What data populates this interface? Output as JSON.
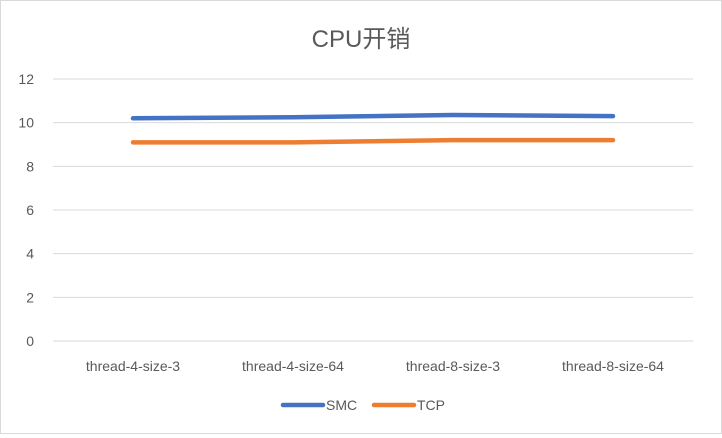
{
  "chart_data": {
    "type": "line",
    "title": "CPU开销",
    "categories": [
      "thread-4-size-3",
      "thread-4-size-64",
      "thread-8-size-3",
      "thread-8-size-64"
    ],
    "series": [
      {
        "name": "SMC",
        "values": [
          10.2,
          10.25,
          10.35,
          10.3
        ],
        "color": "#4472C4"
      },
      {
        "name": "TCP",
        "values": [
          9.1,
          9.1,
          9.2,
          9.2
        ],
        "color": "#ED7D31"
      }
    ],
    "yticks": [
      0,
      2,
      4,
      6,
      8,
      10,
      12
    ],
    "ylim": [
      0,
      12
    ],
    "grid": true,
    "legend": "bottom"
  }
}
